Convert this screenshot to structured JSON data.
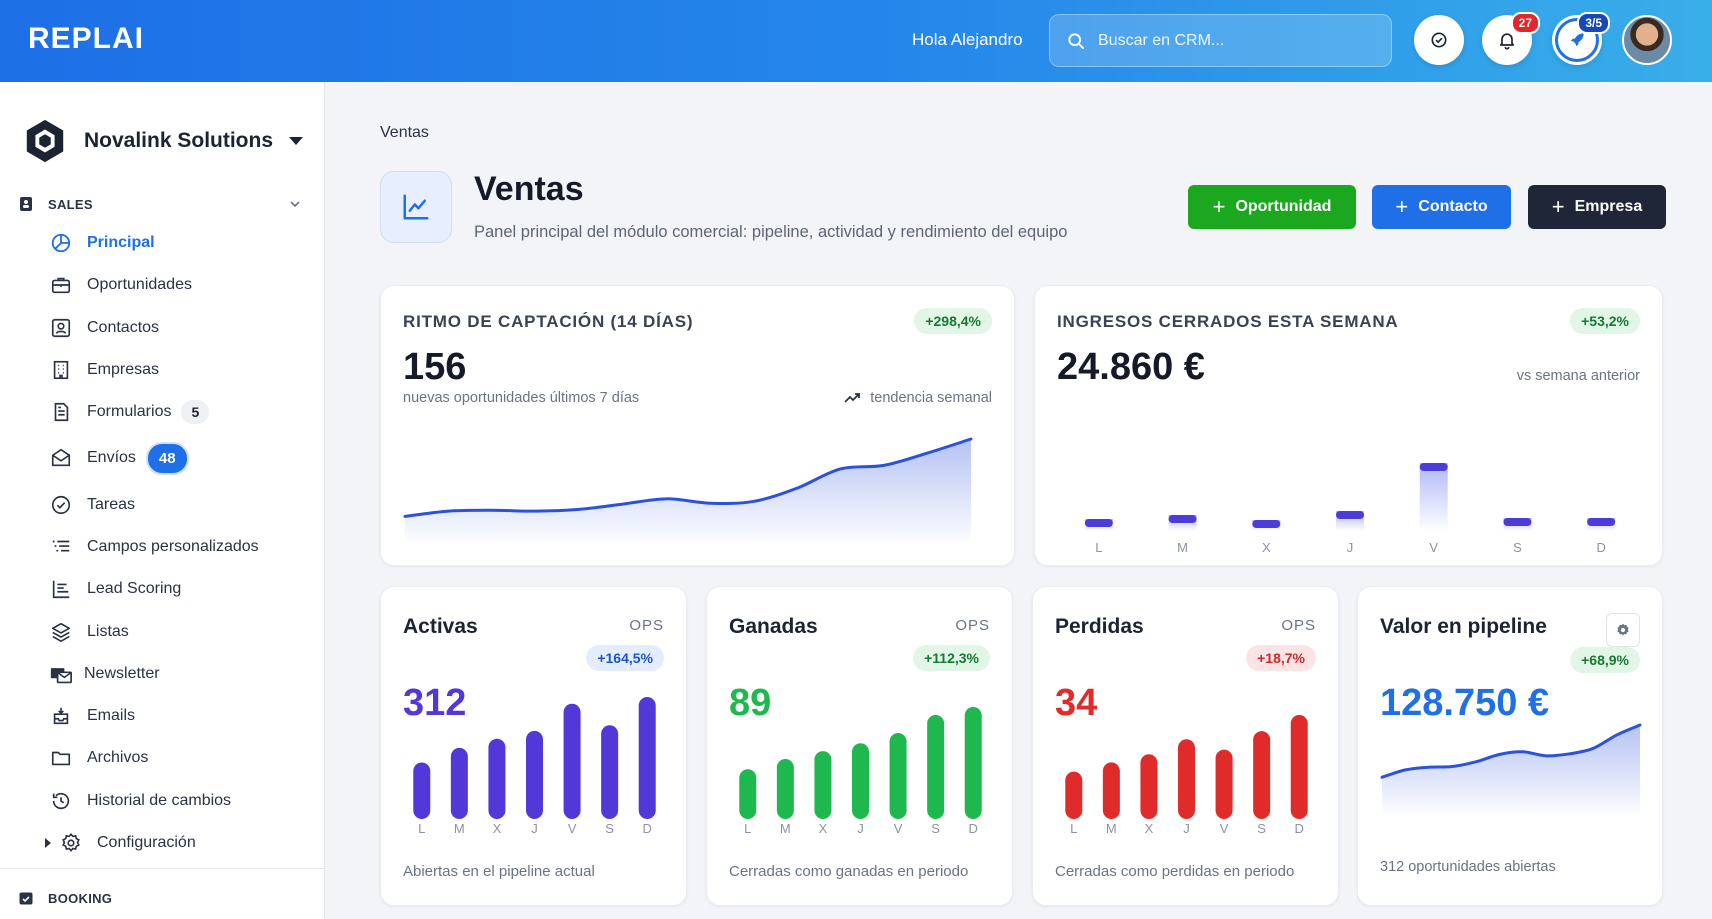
{
  "header": {
    "logo": "REPLAI",
    "greeting": "Hola Alejandro",
    "search_placeholder": "Buscar en CRM...",
    "notifications_count": "27",
    "onboarding_progress": "3/5"
  },
  "sidebar": {
    "company_name": "Novalink Solutions",
    "section_sales": "SALES",
    "section_booking": "BOOKING",
    "items": [
      {
        "label": "Principal",
        "icon": "chart-pie-icon"
      },
      {
        "label": "Oportunidades",
        "icon": "briefcase-icon"
      },
      {
        "label": "Contactos",
        "icon": "contact-card-icon"
      },
      {
        "label": "Empresas",
        "icon": "building-icon"
      },
      {
        "label": "Formularios",
        "icon": "form-icon",
        "count": "5"
      },
      {
        "label": "Envíos",
        "icon": "envelope-icon",
        "count": "48"
      },
      {
        "label": "Tareas",
        "icon": "check-circle-icon"
      },
      {
        "label": "Campos personalizados",
        "icon": "list-lines-icon"
      },
      {
        "label": "Lead Scoring",
        "icon": "bar-list-icon"
      },
      {
        "label": "Listas",
        "icon": "layers-icon"
      },
      {
        "label": "Newsletter",
        "icon": "newsletter-icon"
      },
      {
        "label": "Emails",
        "icon": "email-inbox-icon"
      },
      {
        "label": "Archivos",
        "icon": "folder-icon"
      },
      {
        "label": "Historial de cambios",
        "icon": "history-icon"
      },
      {
        "label": "Configuración",
        "icon": "gear-icon"
      }
    ]
  },
  "page": {
    "breadcrumb": "Ventas",
    "title": "Ventas",
    "subtitle": "Panel principal del módulo comercial: pipeline, actividad y rendimiento del equipo",
    "buttons": {
      "opportunity": "Oportunidad",
      "contact": "Contacto",
      "company": "Empresa"
    }
  },
  "cards": {
    "capture": {
      "title": "RITMO DE CAPTACIÓN (14 DÍAS)",
      "change": "+298,4%",
      "value": "156",
      "caption": "nuevas oportunidades últimos 7 días",
      "trend_label": "tendencia semanal"
    },
    "revenue": {
      "title": "INGRESOS CERRADOS ESTA SEMANA",
      "change": "+53,2%",
      "value": "24.860 €",
      "caption": "vs semana anterior"
    },
    "active": {
      "title": "Activas",
      "unit": "OPS",
      "change": "+164,5%",
      "value": "312",
      "caption": "Abiertas en el pipeline actual"
    },
    "won": {
      "title": "Ganadas",
      "unit": "OPS",
      "change": "+112,3%",
      "value": "89",
      "caption": "Cerradas como ganadas en periodo"
    },
    "lost": {
      "title": "Perdidas",
      "unit": "OPS",
      "change": "+18,7%",
      "value": "34",
      "caption": "Cerradas como perdidas en periodo"
    },
    "pipeline": {
      "title": "Valor en pipeline",
      "change": "+68,9%",
      "value": "128.750 €",
      "caption": "312 oportunidades abiertas"
    }
  },
  "chart_data": [
    {
      "type": "area",
      "id": "capture",
      "x": [
        1,
        2,
        3,
        4,
        5,
        6,
        7,
        8,
        9,
        10,
        11,
        12,
        13,
        14
      ],
      "values": [
        20,
        26,
        27,
        26,
        28,
        34,
        40,
        35,
        37,
        52,
        74,
        78,
        92,
        108
      ],
      "color": "#2b52dc"
    },
    {
      "type": "bar",
      "id": "revenue",
      "categories": [
        "L",
        "M",
        "X",
        "J",
        "V",
        "S",
        "D"
      ],
      "values": [
        2,
        4,
        1.5,
        6,
        30,
        2.5,
        2.5
      ],
      "color": "#4c3ddb"
    },
    {
      "type": "bar",
      "id": "active",
      "categories": [
        "L",
        "M",
        "X",
        "J",
        "V",
        "S",
        "D"
      ],
      "values": [
        50,
        63,
        71,
        78,
        102,
        83,
        108
      ],
      "color": "#5238d8"
    },
    {
      "type": "bar",
      "id": "won",
      "categories": [
        "L",
        "M",
        "X",
        "J",
        "V",
        "S",
        "D"
      ],
      "values": [
        44,
        53,
        60,
        67,
        76,
        92,
        99
      ],
      "color": "#1fb84f"
    },
    {
      "type": "bar",
      "id": "lost",
      "categories": [
        "L",
        "M",
        "X",
        "J",
        "V",
        "S",
        "D"
      ],
      "values": [
        41,
        49,
        56,
        69,
        60,
        76,
        90
      ],
      "color": "#e02b2b"
    },
    {
      "type": "area",
      "id": "pipeline",
      "x": [
        1,
        2,
        3,
        4,
        5,
        6,
        7,
        8,
        9,
        10,
        11,
        12
      ],
      "values": [
        22,
        33,
        37,
        38,
        45,
        56,
        60,
        54,
        57,
        65,
        85,
        100
      ],
      "color": "#2b52dc"
    }
  ]
}
